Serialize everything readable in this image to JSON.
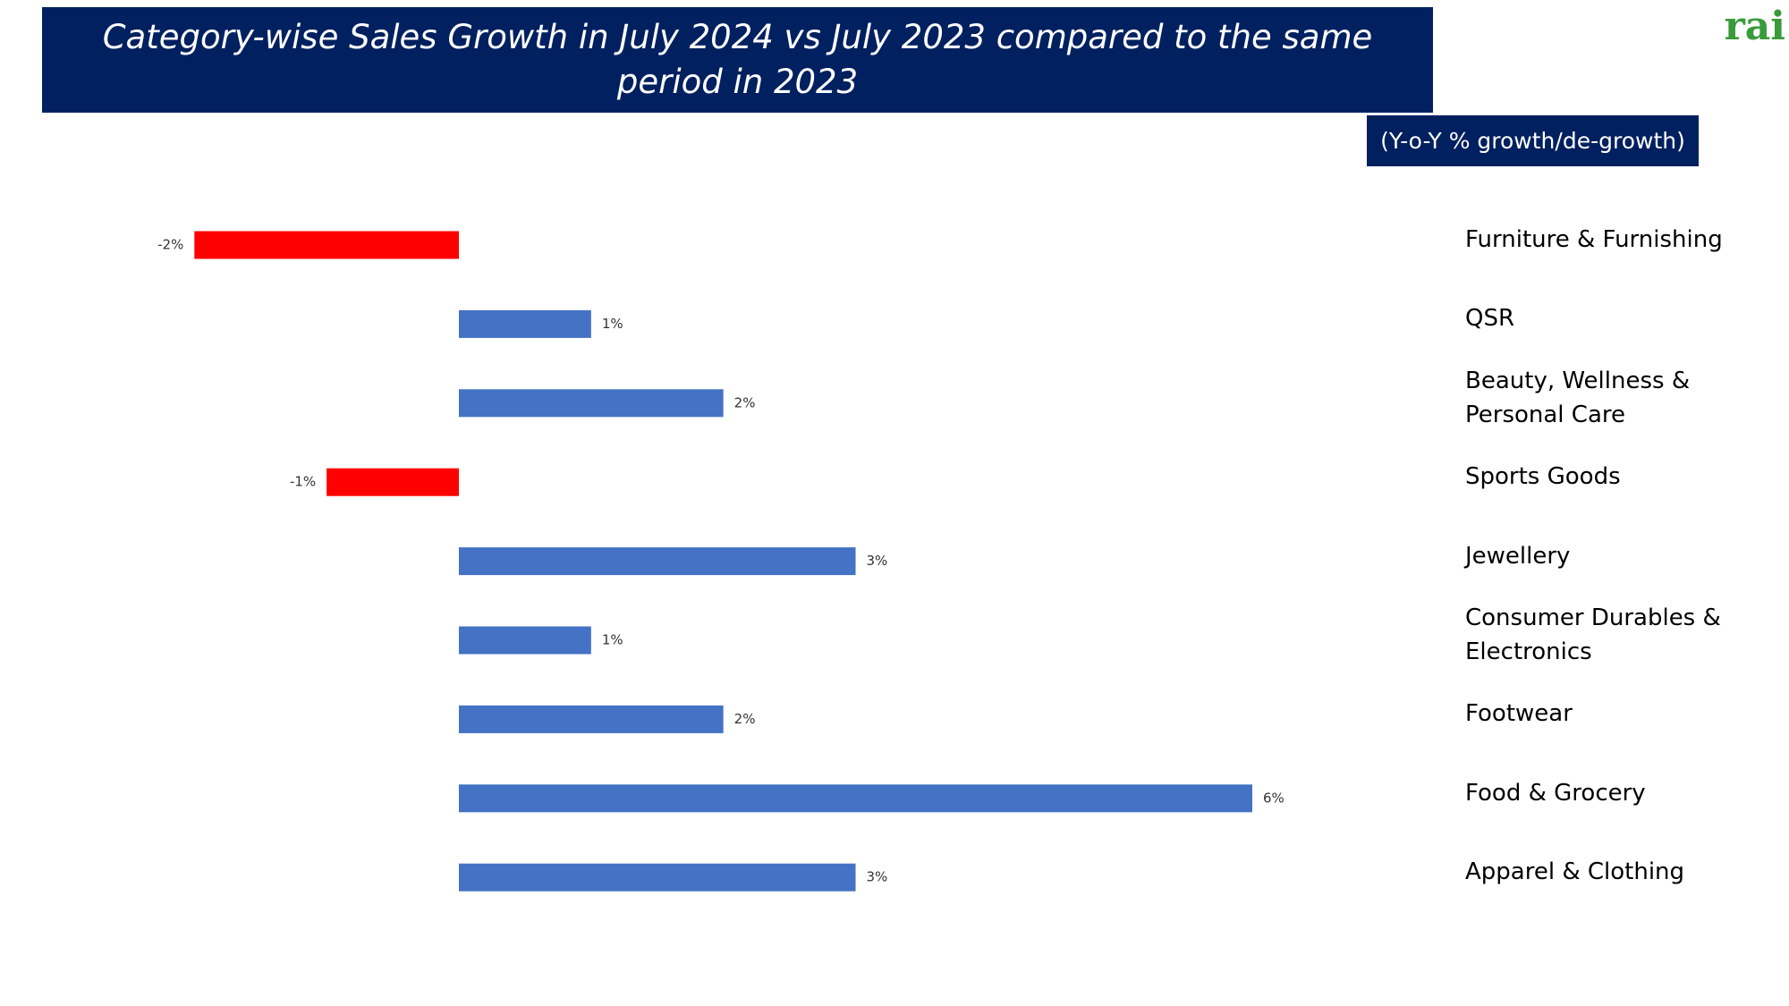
{
  "chart_data": {
    "type": "hbar",
    "title": "Category-wise Sales Growth in July 2024 vs July 2023 compared to the same period in 2023",
    "subtitle": "(Y-o-Y % growth/de-growth)",
    "logo": "rai",
    "categories": [
      "Furniture &  Furnishing",
      "QSR",
      "Beauty, Wellness & Personal Care",
      "Sports Goods",
      "Jewellery",
      "Consumer Durables & Electronics",
      "Footwear",
      "Food & Grocery",
      "Apparel & Clothing"
    ],
    "values": [
      -2,
      1,
      2,
      -1,
      3,
      1,
      2,
      6,
      3
    ],
    "value_labels": [
      "-2%",
      "1%",
      "2%",
      "-1%",
      "3%",
      "1%",
      "2%",
      "6%",
      "3%"
    ],
    "colors": [
      "#ff0000",
      "#4472c4",
      "#4472c4",
      "#ff0000",
      "#4472c4",
      "#4472c4",
      "#4472c4",
      "#4472c4",
      "#4472c4"
    ]
  }
}
